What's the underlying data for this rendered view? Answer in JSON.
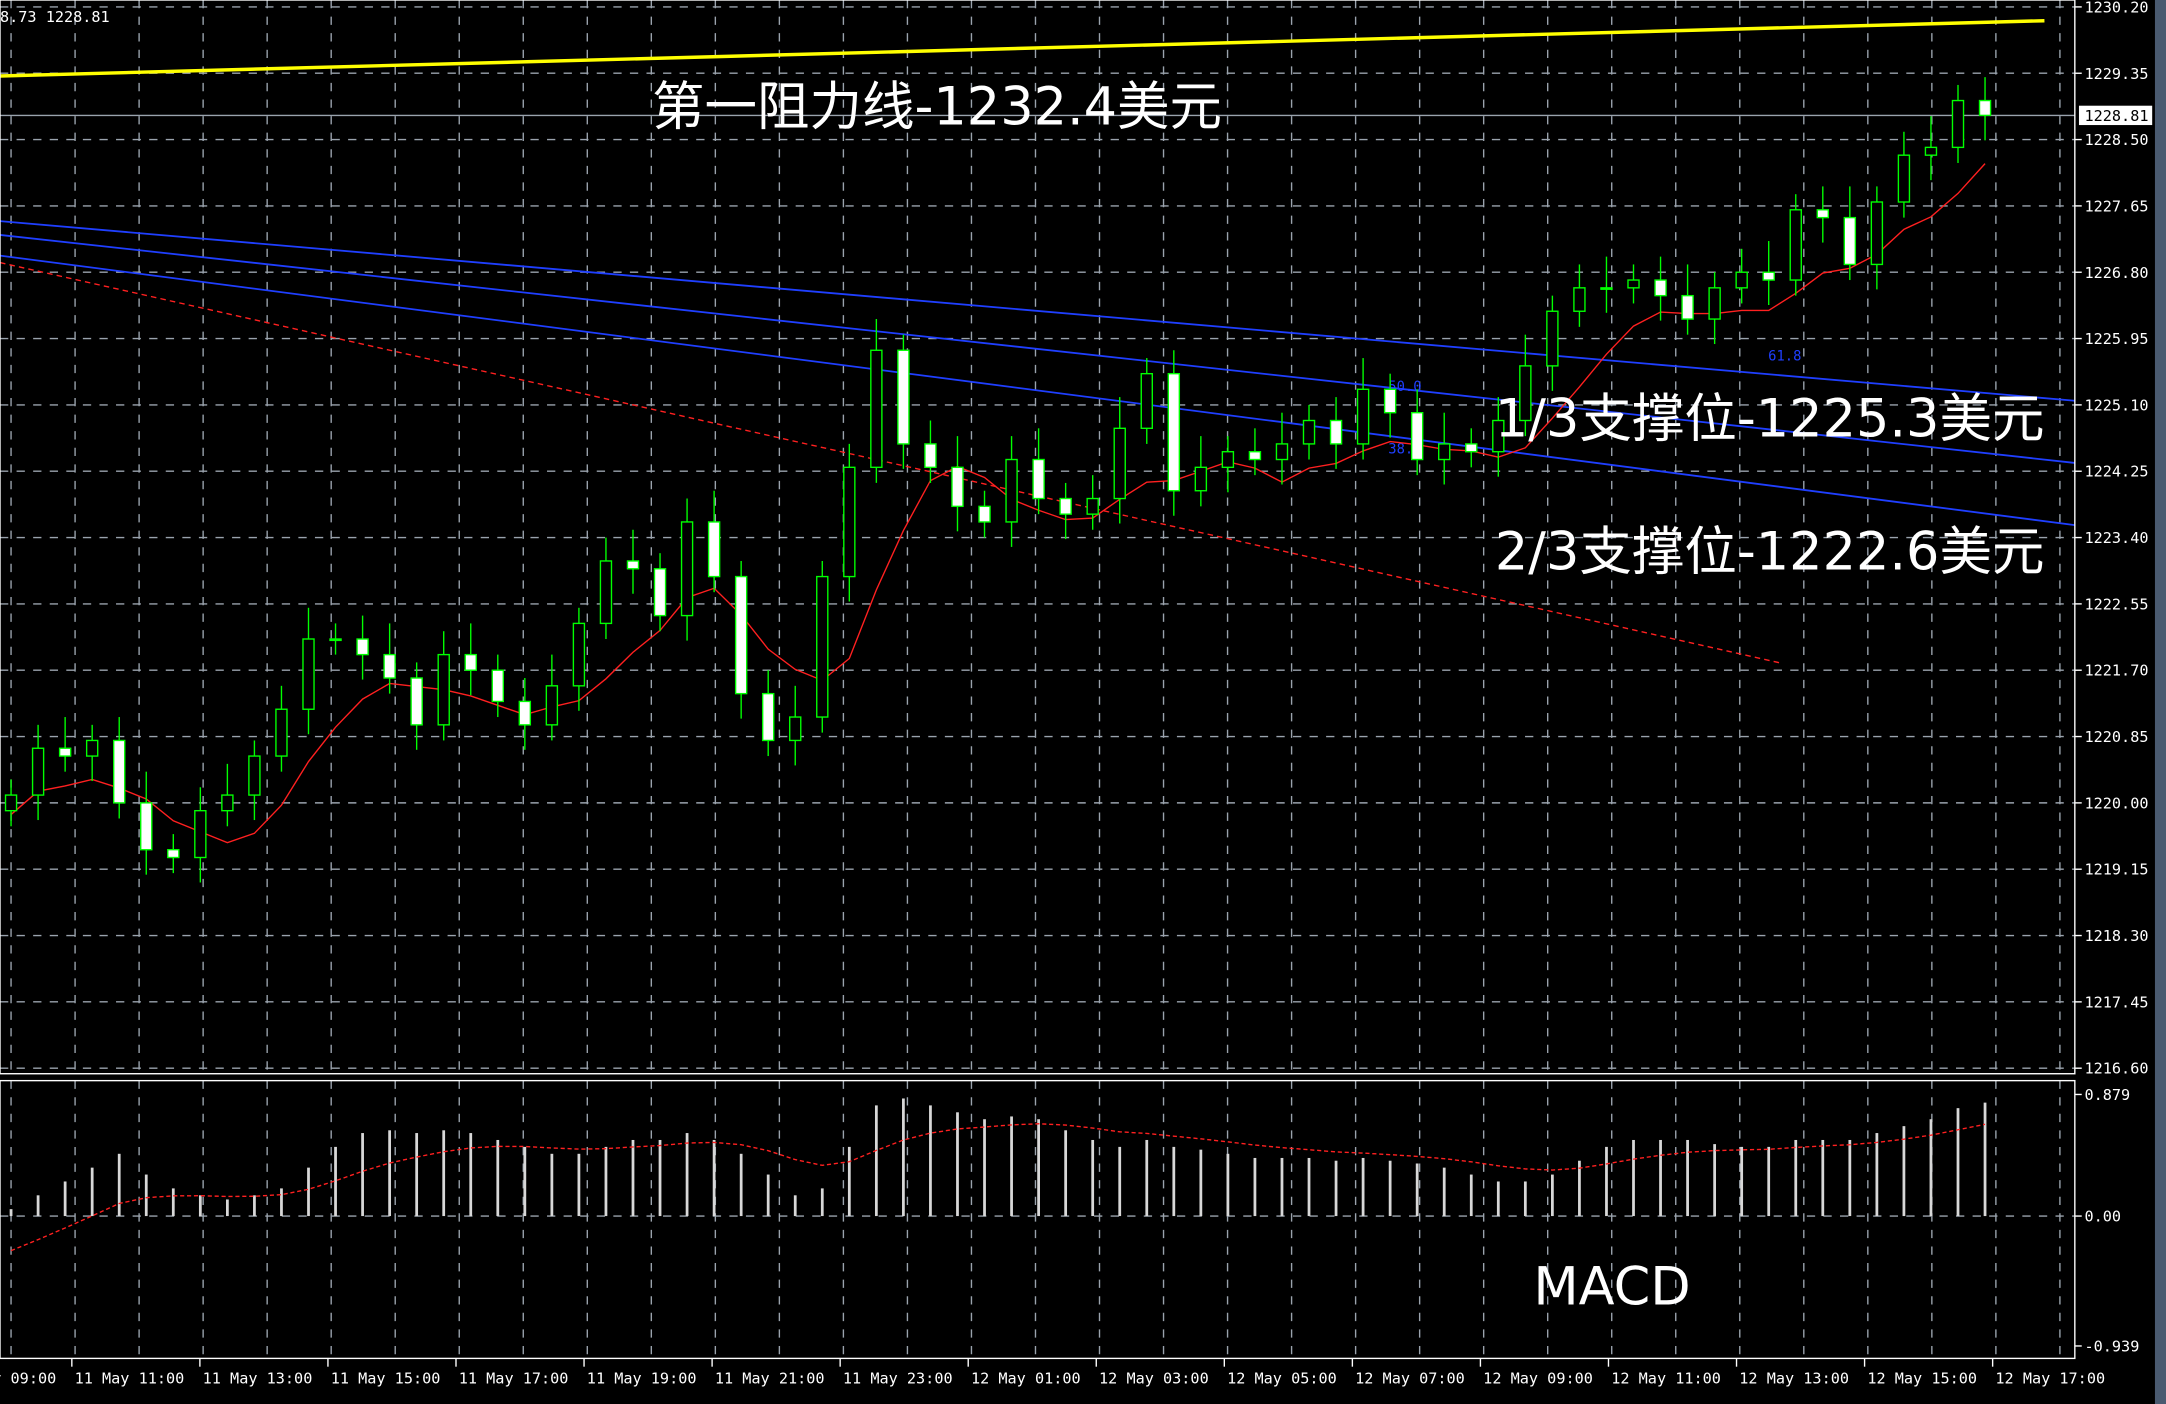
{
  "chart_data": {
    "type": "candlestick",
    "title": "",
    "price_axis": {
      "ticks": [
        "1230.20",
        "1229.35",
        "1228.50",
        "1227.65",
        "1226.80",
        "1225.95",
        "1225.10",
        "1224.25",
        "1223.40",
        "1222.55",
        "1221.70",
        "1220.85",
        "1220.00",
        "1219.15",
        "1218.30",
        "1217.45",
        "1216.60"
      ],
      "range": [
        1216.6,
        1230.2
      ],
      "current_price": "1228.81"
    },
    "top_left_readout": "8.73 1228.81",
    "time_axis": {
      "ticks": [
        "11 May 09:00",
        "11 May 11:00",
        "11 May 13:00",
        "11 May 15:00",
        "11 May 17:00",
        "11 May 19:00",
        "11 May 21:00",
        "11 May 23:00",
        "12 May 01:00",
        "12 May 03:00",
        "12 May 05:00",
        "12 May 07:00",
        "12 May 09:00",
        "12 May 11:00",
        "12 May 13:00",
        "12 May 15:00",
        "12 May 17:00"
      ]
    },
    "closes": [
      1220.1,
      1220.7,
      1220.6,
      1220.8,
      1220.0,
      1219.4,
      1219.3,
      1219.9,
      1220.1,
      1220.6,
      1221.2,
      1222.1,
      1222.1,
      1221.9,
      1221.6,
      1221.0,
      1221.9,
      1221.7,
      1221.3,
      1221.0,
      1221.5,
      1222.3,
      1223.1,
      1223.0,
      1222.4,
      1223.6,
      1222.9,
      1221.4,
      1220.8,
      1221.1,
      1222.9,
      1224.3,
      1225.8,
      1224.6,
      1224.3,
      1223.8,
      1223.6,
      1224.4,
      1223.9,
      1223.7,
      1223.9,
      1224.8,
      1225.5,
      1224.0,
      1224.3,
      1224.5,
      1224.4,
      1224.6,
      1224.9,
      1224.6,
      1225.3,
      1225.0,
      1224.4,
      1224.6,
      1224.5,
      1224.9,
      1225.6,
      1226.3,
      1226.6,
      1226.6,
      1226.7,
      1226.5,
      1226.2,
      1226.6,
      1226.8,
      1226.7,
      1227.6,
      1227.5,
      1226.9,
      1227.7,
      1228.3,
      1228.4,
      1229.0,
      1228.81
    ],
    "first_open": 1219.9,
    "colors": {
      "background": "#000000",
      "grid": "#9aa3ad",
      "bull": "#00ff00",
      "bear": "#00ff00",
      "bull_body": "#000000",
      "bear_body": "#ffffff",
      "moving_average": "#ff2020",
      "trendline": "#ff2020",
      "channel": "#1f3fff",
      "resistance": "#ffff00"
    },
    "fib_labels": [
      "61.8",
      "50.0",
      "38.2"
    ],
    "annotations": {
      "resistance": "第一阻力线-1232.4美元",
      "support1": "1/3支撑位-1225.3美元",
      "support2": "2/3支撑位-1222.6美元"
    },
    "macd": {
      "label": "MACD",
      "ticks": [
        "0.879",
        "0.00",
        "-0.939"
      ],
      "range": [
        -0.939,
        0.879
      ],
      "histogram": [
        0.05,
        0.15,
        0.25,
        0.35,
        0.45,
        0.3,
        0.2,
        0.15,
        0.12,
        0.15,
        0.2,
        0.35,
        0.5,
        0.6,
        0.62,
        0.6,
        0.62,
        0.6,
        0.55,
        0.5,
        0.45,
        0.45,
        0.5,
        0.55,
        0.55,
        0.6,
        0.55,
        0.45,
        0.3,
        0.15,
        0.2,
        0.5,
        0.8,
        0.85,
        0.8,
        0.75,
        0.7,
        0.72,
        0.7,
        0.62,
        0.55,
        0.5,
        0.55,
        0.5,
        0.48,
        0.45,
        0.42,
        0.42,
        0.42,
        0.4,
        0.42,
        0.4,
        0.38,
        0.35,
        0.3,
        0.25,
        0.25,
        0.3,
        0.4,
        0.5,
        0.55,
        0.55,
        0.55,
        0.52,
        0.5,
        0.5,
        0.55,
        0.55,
        0.55,
        0.6,
        0.65,
        0.7,
        0.78,
        0.82
      ]
    }
  }
}
